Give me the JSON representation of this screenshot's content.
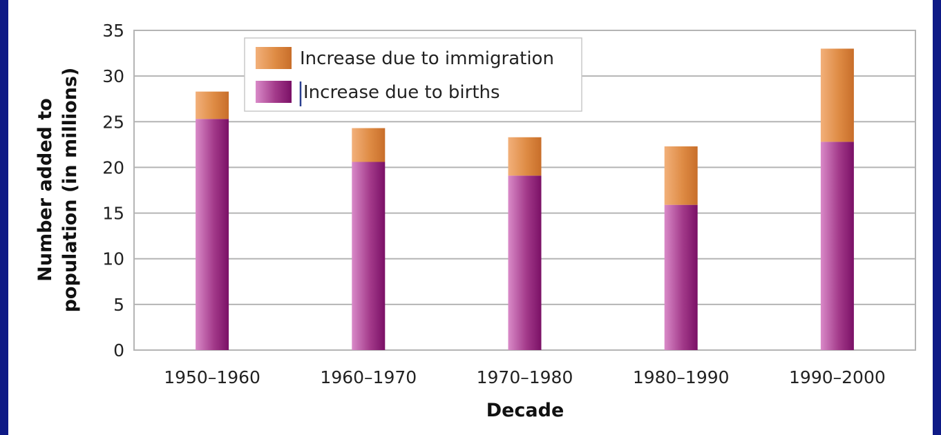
{
  "chart_data": {
    "type": "bar",
    "stacked": true,
    "categories": [
      "1950–1960",
      "1960–1970",
      "1970–1980",
      "1980–1990",
      "1990–2000"
    ],
    "series": [
      {
        "name": "Increase due to births",
        "values": [
          25.3,
          20.6,
          19.1,
          15.9,
          22.8
        ],
        "color": "#9b2a7f"
      },
      {
        "name": "Increase due to immigration",
        "values": [
          3.0,
          3.7,
          4.2,
          6.4,
          10.2
        ],
        "color": "#e08a3e"
      }
    ],
    "title": "",
    "xlabel": "Decade",
    "ylabel_line1": "Number added to",
    "ylabel_line2": "population (in millions)",
    "ylim": [
      0,
      35
    ],
    "yticks": [
      "0",
      "5",
      "10",
      "15",
      "20",
      "25",
      "30",
      "35"
    ],
    "grid": true,
    "legend_position": "top-left"
  }
}
